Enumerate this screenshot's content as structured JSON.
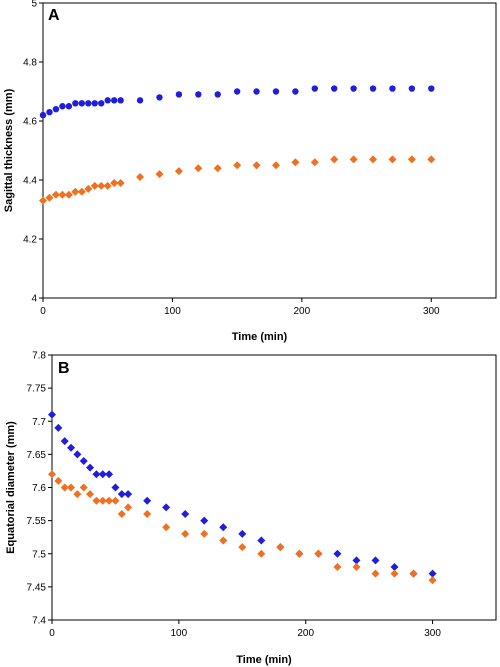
{
  "chart_data": [
    {
      "id": "A",
      "type": "scatter",
      "panel_label": "A",
      "xlabel": "Time (min)",
      "ylabel": "Sagittal thickness (mm)",
      "xlim": [
        0,
        350
      ],
      "ylim": [
        4,
        5
      ],
      "xticks": [
        0,
        100,
        200,
        300
      ],
      "yticks": [
        4,
        4.2,
        4.4,
        4.6,
        4.8,
        5
      ],
      "ytick_labels": [
        "4",
        "4.2",
        "4.4",
        "4.6",
        "4.8",
        "5"
      ],
      "grid": false,
      "legend": "none",
      "series": [
        {
          "color": "#1f1fdb",
          "marker": "circle",
          "x": [
            0,
            5,
            10,
            15,
            20,
            25,
            30,
            35,
            40,
            45,
            50,
            55,
            60,
            75,
            90,
            105,
            120,
            135,
            150,
            165,
            180,
            195,
            210,
            225,
            240,
            255,
            270,
            285,
            300
          ],
          "y": [
            4.62,
            4.63,
            4.64,
            4.65,
            4.65,
            4.66,
            4.66,
            4.66,
            4.66,
            4.66,
            4.67,
            4.67,
            4.67,
            4.67,
            4.68,
            4.69,
            4.69,
            4.69,
            4.7,
            4.7,
            4.7,
            4.7,
            4.71,
            4.71,
            4.71,
            4.71,
            4.71,
            4.71,
            4.71
          ]
        },
        {
          "color": "#f07020",
          "marker": "diamond",
          "x": [
            0,
            5,
            10,
            15,
            20,
            25,
            30,
            35,
            40,
            45,
            50,
            55,
            60,
            75,
            90,
            105,
            120,
            135,
            150,
            165,
            180,
            195,
            210,
            225,
            240,
            255,
            270,
            285,
            300
          ],
          "y": [
            4.33,
            4.34,
            4.35,
            4.35,
            4.35,
            4.36,
            4.36,
            4.37,
            4.38,
            4.38,
            4.38,
            4.39,
            4.39,
            4.41,
            4.42,
            4.43,
            4.44,
            4.44,
            4.45,
            4.45,
            4.45,
            4.46,
            4.46,
            4.47,
            4.47,
            4.47,
            4.47,
            4.47,
            4.47
          ]
        }
      ]
    },
    {
      "id": "B",
      "type": "scatter",
      "panel_label": "B",
      "xlabel": "Time (min)",
      "ylabel": "Equatorial diameter (mm)",
      "xlim": [
        0,
        350
      ],
      "ylim": [
        7.4,
        7.8
      ],
      "xticks": [
        0,
        100,
        200,
        300
      ],
      "yticks": [
        7.4,
        7.45,
        7.5,
        7.55,
        7.6,
        7.65,
        7.7,
        7.75,
        7.8
      ],
      "ytick_labels": [
        "7.4",
        "7.45",
        "7.5",
        "7.55",
        "7.6",
        "7.65",
        "7.7",
        "7.75",
        "7.8"
      ],
      "grid": false,
      "legend": "none",
      "series": [
        {
          "color": "#1f1fdb",
          "marker": "diamond",
          "x": [
            0,
            5,
            10,
            15,
            20,
            25,
            30,
            35,
            40,
            45,
            50,
            55,
            60,
            75,
            90,
            105,
            120,
            135,
            150,
            165,
            180,
            195,
            210,
            225,
            240,
            255,
            270,
            285,
            300
          ],
          "y": [
            7.71,
            7.69,
            7.67,
            7.66,
            7.65,
            7.64,
            7.63,
            7.62,
            7.62,
            7.62,
            7.6,
            7.59,
            7.59,
            7.58,
            7.57,
            7.56,
            7.55,
            7.54,
            7.53,
            7.52,
            7.51,
            7.5,
            7.5,
            7.5,
            7.49,
            7.49,
            7.48,
            7.47,
            7.47
          ]
        },
        {
          "color": "#f07020",
          "marker": "diamond",
          "x": [
            0,
            5,
            10,
            15,
            20,
            25,
            30,
            35,
            40,
            45,
            50,
            55,
            60,
            75,
            90,
            105,
            120,
            135,
            150,
            165,
            180,
            195,
            210,
            225,
            240,
            255,
            270,
            285,
            300
          ],
          "y": [
            7.62,
            7.61,
            7.6,
            7.6,
            7.59,
            7.6,
            7.59,
            7.58,
            7.58,
            7.58,
            7.58,
            7.56,
            7.57,
            7.56,
            7.54,
            7.53,
            7.53,
            7.52,
            7.51,
            7.5,
            7.51,
            7.5,
            7.5,
            7.48,
            7.48,
            7.47,
            7.47,
            7.47,
            7.46
          ]
        }
      ]
    }
  ]
}
